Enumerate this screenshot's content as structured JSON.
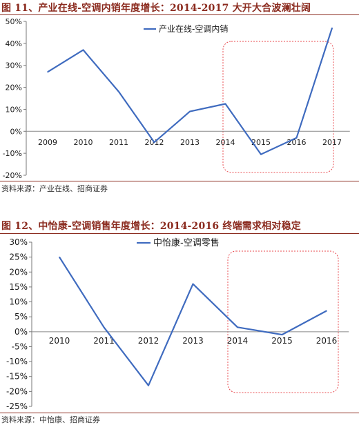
{
  "figures": [
    {
      "title": "图 11、产业在线-空调内销年度增长：2014-2017 大开大合波澜壮阔",
      "source": "资料来源：产业在线、招商证券"
    },
    {
      "title": "图 12、中怡康-空调销售年度增长：2014-2016 终端需求相对稳定",
      "source": "资料来源：中怡康、招商证券"
    }
  ],
  "chart_data": [
    {
      "type": "line",
      "title": "",
      "xlabel": "",
      "ylabel": "",
      "categories": [
        "2009",
        "2010",
        "2011",
        "2012",
        "2013",
        "2014",
        "2015",
        "2016",
        "2017"
      ],
      "series": [
        {
          "name": "产业在线-空调内销",
          "values": [
            27,
            37,
            18,
            -5,
            9,
            12.5,
            -10.5,
            -3,
            47
          ]
        }
      ],
      "ylim": [
        -20,
        50
      ],
      "yticks": [
        "50%",
        "40%",
        "30%",
        "20%",
        "10%",
        "0%",
        "-10%",
        "-20%"
      ],
      "ytick_values": [
        50,
        40,
        30,
        20,
        10,
        0,
        -10,
        -20
      ],
      "line_color": "#3f6bbf",
      "highlight": {
        "from": "2015",
        "to": "2016",
        "style": "dashed-red-rounded-box",
        "color": "#e8484e"
      },
      "grid": false,
      "legend": "top-right"
    },
    {
      "type": "line",
      "title": "",
      "xlabel": "",
      "ylabel": "",
      "categories": [
        "2010",
        "2011",
        "2012",
        "2013",
        "2014",
        "2015",
        "2016"
      ],
      "series": [
        {
          "name": "中怡康-空调零售",
          "values": [
            25,
            1.5,
            -18,
            16,
            1.5,
            -1,
            7
          ]
        }
      ],
      "ylim": [
        -25,
        30
      ],
      "yticks": [
        "30%",
        "25%",
        "20%",
        "15%",
        "10%",
        "5%",
        "0%",
        "-5%",
        "-10%",
        "-15%",
        "-20%",
        "-25%"
      ],
      "ytick_values": [
        30,
        25,
        20,
        15,
        10,
        5,
        0,
        -5,
        -10,
        -15,
        -20,
        -25
      ],
      "line_color": "#3f6bbf",
      "highlight": {
        "from": "2014",
        "to": "2016",
        "style": "dashed-red-rounded-box",
        "color": "#e8484e"
      },
      "grid": false,
      "legend": "top-right"
    }
  ]
}
